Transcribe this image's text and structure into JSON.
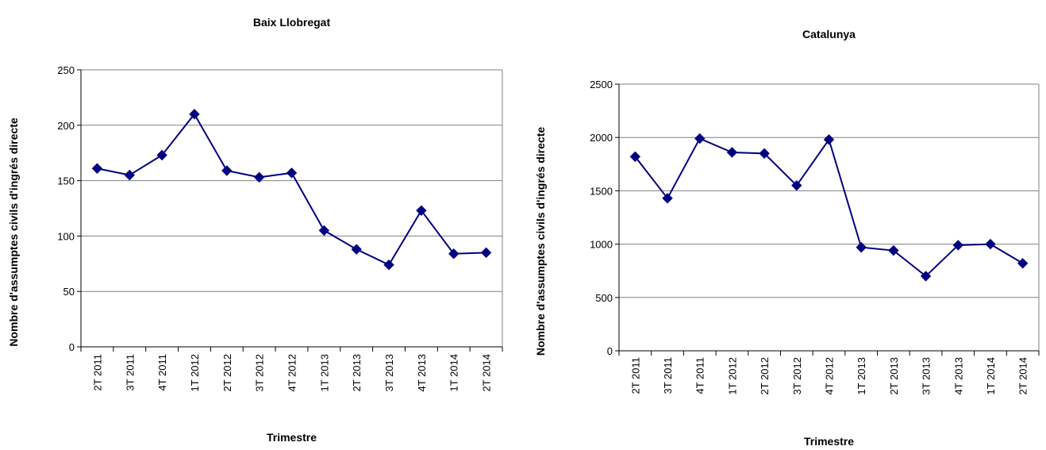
{
  "chart_data": [
    {
      "type": "line",
      "title": "Baix Llobregat",
      "xlabel": "Trimestre",
      "ylabel": "Nombre d'assumptes civils d'ingrés directe",
      "categories": [
        "2T 2011",
        "3T 2011",
        "4T 2011",
        "1T 2012",
        "2T 2012",
        "3T 2012",
        "4T 2012",
        "1T 2013",
        "2T 2013",
        "3T 2013",
        "4T 2013",
        "1T 2014",
        "2T 2014"
      ],
      "series": [
        {
          "values": [
            161,
            155,
            173,
            210,
            159,
            153,
            157,
            105,
            88,
            74,
            123,
            84,
            85
          ],
          "color": "#000080"
        }
      ],
      "ylim": [
        0,
        250
      ],
      "yticks": [
        0,
        50,
        100,
        150,
        200,
        250
      ],
      "grid": true,
      "legend": "none",
      "plot_background": "#ffffff"
    },
    {
      "type": "line",
      "title": "Catalunya",
      "xlabel": "Trimestre",
      "ylabel": "Nombre d'assumptes civils d'ingrés directe",
      "categories": [
        "2T 2011",
        "3T 2011",
        "4T 2011",
        "1T 2012",
        "2T 2012",
        "3T 2012",
        "4T 2012",
        "1T 2013",
        "2T 2013",
        "3T 2013",
        "4T 2013",
        "1T 2014",
        "2T 2014"
      ],
      "series": [
        {
          "values": [
            1820,
            1430,
            1990,
            1860,
            1850,
            1550,
            1980,
            970,
            940,
            700,
            990,
            1000,
            820
          ],
          "color": "#000080"
        }
      ],
      "ylim": [
        0,
        2500
      ],
      "yticks": [
        0,
        500,
        1000,
        1500,
        2000,
        2500
      ],
      "grid": true,
      "legend": "none",
      "plot_background": "#ffffff"
    }
  ]
}
